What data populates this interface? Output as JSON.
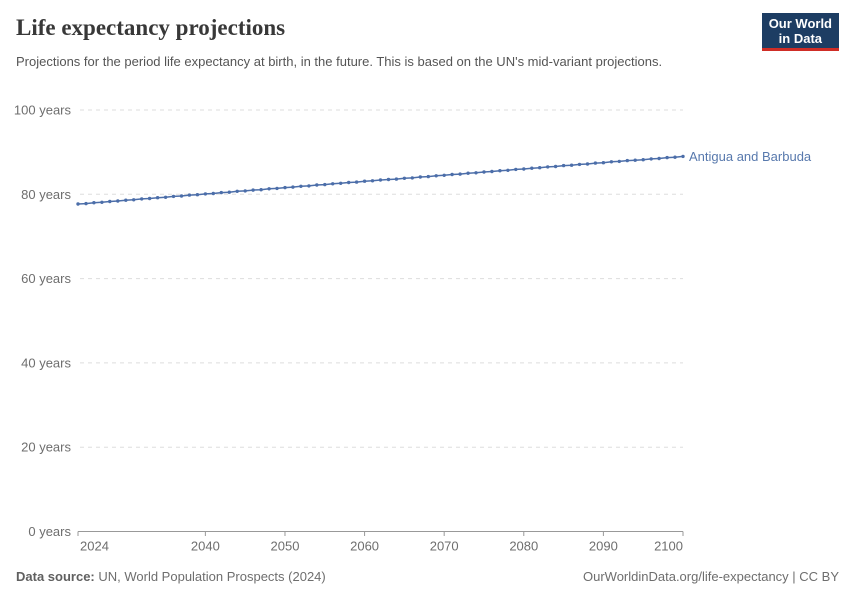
{
  "header": {
    "title": "Life expectancy projections",
    "subtitle": "Projections for the period life expectancy at birth, in the future. This is based on the UN's mid-variant projections.",
    "logo": {
      "line1": "Our World",
      "line2": "in Data",
      "bg_color": "#1d3d63",
      "bar_color": "#cf2d26"
    }
  },
  "footer": {
    "source_label": "Data source:",
    "source_text": " UN, World Population Prospects (2024)",
    "link_text": "OurWorldinData.org/life-expectancy | CC BY"
  },
  "chart_data": {
    "type": "line",
    "title": "Life expectancy projections",
    "xlabel": "",
    "ylabel": "",
    "xlim": [
      2024,
      2100
    ],
    "ylim": [
      0,
      100
    ],
    "x_ticks": [
      2024,
      2040,
      2050,
      2060,
      2070,
      2080,
      2090,
      2100
    ],
    "y_ticks": [
      0,
      20,
      40,
      60,
      80,
      100
    ],
    "y_tick_suffix": " years",
    "grid": "horizontal-dashed",
    "grid_color": "#dddddd",
    "axis_color": "#999999",
    "tick_label_color": "#6e6e6e",
    "legend_position": "line-end-label",
    "marker": "dot-per-year",
    "x": [
      2024,
      2025,
      2026,
      2027,
      2028,
      2029,
      2030,
      2031,
      2032,
      2033,
      2034,
      2035,
      2036,
      2037,
      2038,
      2039,
      2040,
      2041,
      2042,
      2043,
      2044,
      2045,
      2046,
      2047,
      2048,
      2049,
      2050,
      2051,
      2052,
      2053,
      2054,
      2055,
      2056,
      2057,
      2058,
      2059,
      2060,
      2061,
      2062,
      2063,
      2064,
      2065,
      2066,
      2067,
      2068,
      2069,
      2070,
      2071,
      2072,
      2073,
      2074,
      2075,
      2076,
      2077,
      2078,
      2079,
      2080,
      2081,
      2082,
      2083,
      2084,
      2085,
      2086,
      2087,
      2088,
      2089,
      2090,
      2091,
      2092,
      2093,
      2094,
      2095,
      2096,
      2097,
      2098,
      2099,
      2100
    ],
    "series": [
      {
        "name": "Antigua and Barbuda",
        "color": "#4c6ea9",
        "values": [
          77.7,
          77.8,
          78.0,
          78.1,
          78.3,
          78.4,
          78.6,
          78.7,
          78.9,
          79.0,
          79.2,
          79.3,
          79.5,
          79.6,
          79.8,
          79.9,
          80.1,
          80.2,
          80.4,
          80.5,
          80.7,
          80.8,
          81.0,
          81.1,
          81.3,
          81.4,
          81.6,
          81.7,
          81.9,
          82.0,
          82.2,
          82.3,
          82.5,
          82.6,
          82.8,
          82.9,
          83.1,
          83.2,
          83.4,
          83.5,
          83.6,
          83.8,
          83.9,
          84.1,
          84.2,
          84.4,
          84.5,
          84.7,
          84.8,
          85.0,
          85.1,
          85.3,
          85.4,
          85.6,
          85.7,
          85.9,
          86.0,
          86.2,
          86.3,
          86.5,
          86.6,
          86.8,
          86.9,
          87.1,
          87.2,
          87.4,
          87.5,
          87.7,
          87.8,
          88.0,
          88.1,
          88.2,
          88.4,
          88.5,
          88.7,
          88.8,
          89.0
        ]
      }
    ]
  }
}
